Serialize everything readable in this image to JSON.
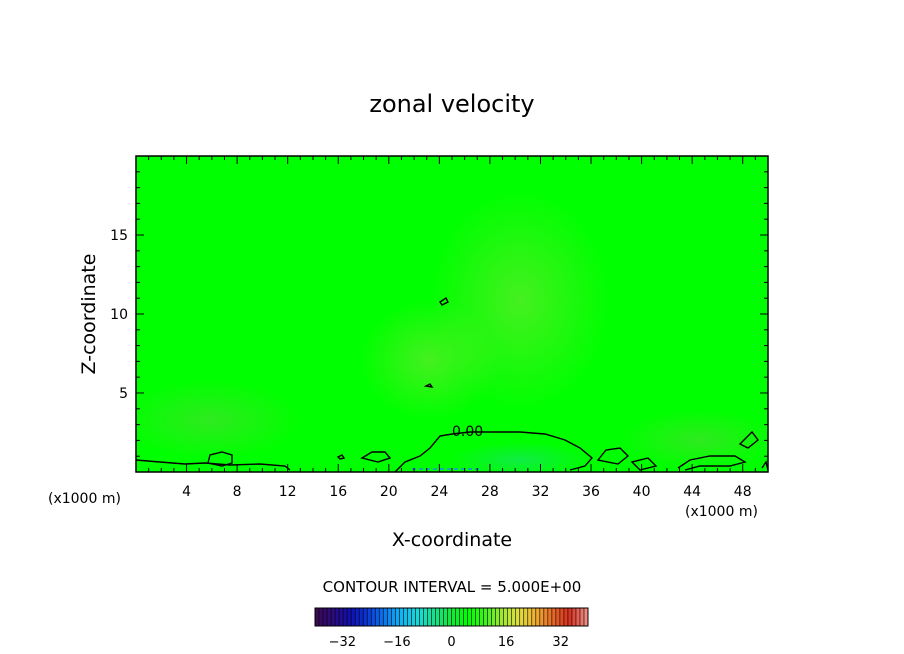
{
  "chart_data": {
    "type": "heatmap",
    "title": "zonal velocity",
    "xlabel": "X-coordinate",
    "ylabel": "Z-coordinate",
    "x_unit": "(x1000 m)",
    "y_unit": "(x1000 m)",
    "xlim": [
      0,
      50
    ],
    "ylim": [
      0,
      20
    ],
    "x_ticks": [
      4,
      8,
      12,
      16,
      20,
      24,
      28,
      32,
      36,
      40,
      44,
      48
    ],
    "y_ticks": [
      5,
      10,
      15
    ],
    "field": "mostly near-zero zonal velocity (green), weak positive values (yellow-green) centred around x=24-34, z=2-12",
    "contour_label": "0.00",
    "contour_interval_text": "CONTOUR INTERVAL = 5.000E+00",
    "colorbar": {
      "ticks": [
        -32,
        -16,
        0,
        16,
        32
      ],
      "range": [
        -40,
        40
      ],
      "colors": [
        "#3a0a55",
        "#2a0b80",
        "#1010b0",
        "#0a3ad8",
        "#0a78f0",
        "#10b4f4",
        "#18d8d8",
        "#18e08a",
        "#14e83c",
        "#00ff00",
        "#40f020",
        "#a0e830",
        "#e0e040",
        "#f0b030",
        "#e86a28",
        "#d83020",
        "#f08a80"
      ]
    }
  }
}
